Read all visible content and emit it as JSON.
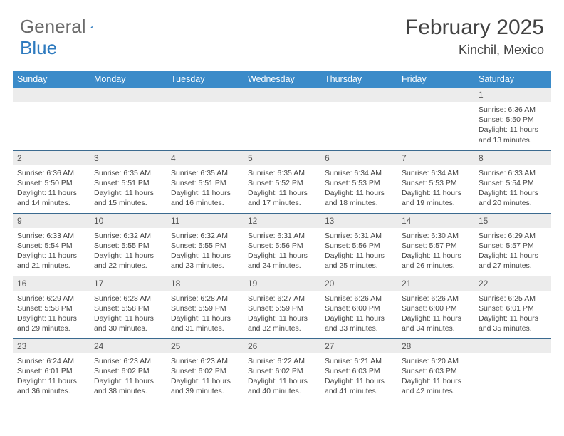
{
  "logo": {
    "word1": "General",
    "word2": "Blue"
  },
  "title": "February 2025",
  "location": "Kinchil, Mexico",
  "colors": {
    "header_bg": "#3b8bc9",
    "header_text": "#ffffff",
    "daynum_bg": "#ececec",
    "border": "#3b6a8f",
    "logo_gray": "#6b6b6b",
    "logo_blue": "#2f7bbf"
  },
  "day_headers": [
    "Sunday",
    "Monday",
    "Tuesday",
    "Wednesday",
    "Thursday",
    "Friday",
    "Saturday"
  ],
  "weeks": [
    [
      null,
      null,
      null,
      null,
      null,
      null,
      {
        "n": "1",
        "sr": "6:36 AM",
        "ss": "5:50 PM",
        "dl": "11 hours and 13 minutes."
      }
    ],
    [
      {
        "n": "2",
        "sr": "6:36 AM",
        "ss": "5:50 PM",
        "dl": "11 hours and 14 minutes."
      },
      {
        "n": "3",
        "sr": "6:35 AM",
        "ss": "5:51 PM",
        "dl": "11 hours and 15 minutes."
      },
      {
        "n": "4",
        "sr": "6:35 AM",
        "ss": "5:51 PM",
        "dl": "11 hours and 16 minutes."
      },
      {
        "n": "5",
        "sr": "6:35 AM",
        "ss": "5:52 PM",
        "dl": "11 hours and 17 minutes."
      },
      {
        "n": "6",
        "sr": "6:34 AM",
        "ss": "5:53 PM",
        "dl": "11 hours and 18 minutes."
      },
      {
        "n": "7",
        "sr": "6:34 AM",
        "ss": "5:53 PM",
        "dl": "11 hours and 19 minutes."
      },
      {
        "n": "8",
        "sr": "6:33 AM",
        "ss": "5:54 PM",
        "dl": "11 hours and 20 minutes."
      }
    ],
    [
      {
        "n": "9",
        "sr": "6:33 AM",
        "ss": "5:54 PM",
        "dl": "11 hours and 21 minutes."
      },
      {
        "n": "10",
        "sr": "6:32 AM",
        "ss": "5:55 PM",
        "dl": "11 hours and 22 minutes."
      },
      {
        "n": "11",
        "sr": "6:32 AM",
        "ss": "5:55 PM",
        "dl": "11 hours and 23 minutes."
      },
      {
        "n": "12",
        "sr": "6:31 AM",
        "ss": "5:56 PM",
        "dl": "11 hours and 24 minutes."
      },
      {
        "n": "13",
        "sr": "6:31 AM",
        "ss": "5:56 PM",
        "dl": "11 hours and 25 minutes."
      },
      {
        "n": "14",
        "sr": "6:30 AM",
        "ss": "5:57 PM",
        "dl": "11 hours and 26 minutes."
      },
      {
        "n": "15",
        "sr": "6:29 AM",
        "ss": "5:57 PM",
        "dl": "11 hours and 27 minutes."
      }
    ],
    [
      {
        "n": "16",
        "sr": "6:29 AM",
        "ss": "5:58 PM",
        "dl": "11 hours and 29 minutes."
      },
      {
        "n": "17",
        "sr": "6:28 AM",
        "ss": "5:58 PM",
        "dl": "11 hours and 30 minutes."
      },
      {
        "n": "18",
        "sr": "6:28 AM",
        "ss": "5:59 PM",
        "dl": "11 hours and 31 minutes."
      },
      {
        "n": "19",
        "sr": "6:27 AM",
        "ss": "5:59 PM",
        "dl": "11 hours and 32 minutes."
      },
      {
        "n": "20",
        "sr": "6:26 AM",
        "ss": "6:00 PM",
        "dl": "11 hours and 33 minutes."
      },
      {
        "n": "21",
        "sr": "6:26 AM",
        "ss": "6:00 PM",
        "dl": "11 hours and 34 minutes."
      },
      {
        "n": "22",
        "sr": "6:25 AM",
        "ss": "6:01 PM",
        "dl": "11 hours and 35 minutes."
      }
    ],
    [
      {
        "n": "23",
        "sr": "6:24 AM",
        "ss": "6:01 PM",
        "dl": "11 hours and 36 minutes."
      },
      {
        "n": "24",
        "sr": "6:23 AM",
        "ss": "6:02 PM",
        "dl": "11 hours and 38 minutes."
      },
      {
        "n": "25",
        "sr": "6:23 AM",
        "ss": "6:02 PM",
        "dl": "11 hours and 39 minutes."
      },
      {
        "n": "26",
        "sr": "6:22 AM",
        "ss": "6:02 PM",
        "dl": "11 hours and 40 minutes."
      },
      {
        "n": "27",
        "sr": "6:21 AM",
        "ss": "6:03 PM",
        "dl": "11 hours and 41 minutes."
      },
      {
        "n": "28",
        "sr": "6:20 AM",
        "ss": "6:03 PM",
        "dl": "11 hours and 42 minutes."
      },
      null
    ]
  ],
  "labels": {
    "sunrise": "Sunrise:",
    "sunset": "Sunset:",
    "daylight": "Daylight:"
  }
}
